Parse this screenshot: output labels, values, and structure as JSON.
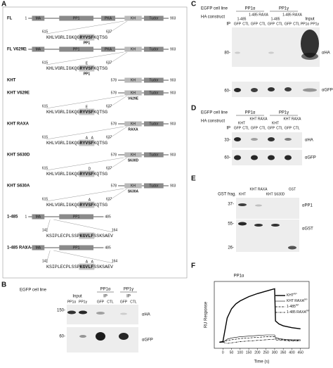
{
  "panels": {
    "A": {
      "label": "A",
      "constructs": [
        {
          "name": "FL",
          "start": "1",
          "end": "903",
          "domains": [
            "MA",
            "PP1",
            "PKA",
            "KH",
            "Tudor"
          ],
          "seq_start": "615",
          "seq_end": "637",
          "seq": [
            "KHLVGRLIGKQG",
            "RYVSF",
            "KQTSG"
          ],
          "seq_tag": "PP1"
        },
        {
          "name": "FL V629E",
          "start": "1",
          "end": "903",
          "domains": [
            "MA",
            "PP1",
            "PKA",
            "KH",
            "Tudor"
          ],
          "seq_start": "615",
          "seq_end": "637",
          "seq": [
            "KHLVGRLIGKQG",
            "RYVSF",
            "KQTSG"
          ],
          "above": [
            "E"
          ],
          "seq_tag": "PP1"
        },
        {
          "name": "KHT",
          "start": "578",
          "end": "903",
          "domains": [
            "KH",
            "Tudor"
          ]
        },
        {
          "name": "KHT V629E",
          "start": "578",
          "end": "903",
          "domains": [
            "KH",
            "Tudor"
          ],
          "sub": "V629E",
          "seq_start": "615",
          "seq_end": "637",
          "seq": [
            "KHLVGRLIGKQG",
            "RYVSF",
            "KQTSG"
          ],
          "above": [
            "E"
          ]
        },
        {
          "name": "KHT RAXA",
          "start": "578",
          "end": "903",
          "domains": [
            "KH",
            "Tudor"
          ],
          "sub": "RAXA",
          "seq_start": "615",
          "seq_end": "637",
          "seq": [
            "KHLVGRLIGKQG",
            "RYVSF",
            "KQTSG"
          ],
          "above": [
            "A",
            "A"
          ]
        },
        {
          "name": "KHT S630D",
          "start": "578",
          "end": "903",
          "domains": [
            "KH",
            "Tudor"
          ],
          "sub": "S630D",
          "seq_start": "615",
          "seq_end": "637",
          "seq": [
            "KHLVGRLIGKQG",
            "RYVSF",
            "KQTSG"
          ],
          "above": [
            "D"
          ]
        },
        {
          "name": "KHT S630A",
          "start": "578",
          "end": "903",
          "domains": [
            "KH",
            "Tudor"
          ],
          "sub": "S630A",
          "seq_start": "615",
          "seq_end": "637",
          "seq": [
            "KHLVGRLIGKQG",
            "RYVSF",
            "KQTSG"
          ],
          "above": [
            "A"
          ]
        },
        {
          "name": "1-485",
          "start": "1",
          "end": "485",
          "domains": [
            "MA",
            "PP1"
          ],
          "seq_start": "141",
          "seq_end": "164",
          "seq": [
            "KSIPLECPLSSP",
            "KGVLF",
            "SSKSAEV"
          ]
        },
        {
          "name": "1-485 RAXA",
          "start": "1",
          "end": "485",
          "domains": [
            "MA",
            "PP1"
          ],
          "seq_start": "141",
          "seq_end": "164",
          "seq": [
            "KSIPLECPLSSP",
            "KGVLF",
            "SSKSAEV"
          ],
          "above": [
            "A",
            "A"
          ]
        }
      ]
    },
    "B": {
      "label": "B",
      "cell_line_label": "EGFP cell line",
      "groups": [
        "PP1α",
        "PP1γ"
      ],
      "section_labels": [
        "Input",
        "IP",
        "IP"
      ],
      "lanes": [
        "PP1α",
        "PP1γ",
        "GFP",
        "CTL",
        "GFP",
        "CTL"
      ],
      "markers": [
        "150-",
        "60-"
      ],
      "blots": [
        "αHA",
        "αGFP"
      ]
    },
    "C": {
      "label": "C",
      "cell_line_label": "EGFP cell line",
      "groups": [
        "PP1α",
        "PP1γ"
      ],
      "construct_label": "HA construct",
      "constructs": [
        "1-485",
        "1-485 RAXA",
        "1-485",
        "1-485 RAXA"
      ],
      "ip_label": "IP",
      "lanes": [
        "GFP",
        "CTL",
        "GFP",
        "CTL",
        "GFP",
        "CTL",
        "GFP",
        "CTL"
      ],
      "input_label": "Input",
      "input_lanes": [
        "PP1α",
        "PP1γ"
      ],
      "markers": [
        "80-",
        "60-"
      ],
      "blots": [
        "αHA",
        "αGFP"
      ]
    },
    "D": {
      "label": "D",
      "cell_line_label": "EGFP cell line",
      "groups": [
        "PP1α",
        "PP1γ"
      ],
      "construct_label": "HA construct",
      "constructs": [
        "KHT",
        "KHT RAXA",
        "KHT",
        "KHT RAXA"
      ],
      "ip_label": "IP",
      "lanes": [
        "GFP",
        "CTL",
        "GFP",
        "CTL",
        "GFP",
        "CTL",
        "GFP",
        "CTL"
      ],
      "markers": [
        "33-",
        "60-"
      ],
      "blots": [
        "αHA",
        "αGFP"
      ]
    },
    "E": {
      "label": "E",
      "gst_label": "GST frag.",
      "lanes": [
        "KHT",
        "KHT RAXA",
        "KHT S630D",
        "GST"
      ],
      "markers": [
        "37-",
        "55-",
        "26-"
      ],
      "blots": [
        "αPP1",
        "αGST"
      ]
    }
  },
  "chart_data": {
    "type": "line",
    "panel_label": "F",
    "title": "PP1α",
    "x_label": "Time (s)",
    "y_label": "RU Response",
    "x": [
      -20,
      0,
      25,
      50,
      75,
      100,
      150,
      200,
      250,
      300,
      305,
      325,
      350,
      400,
      450
    ],
    "xlim": [
      -50,
      500
    ],
    "xticks": [
      0,
      50,
      100,
      150,
      200,
      250,
      300,
      350,
      400,
      450
    ],
    "ylim": [
      -10,
      100
    ],
    "series": [
      {
        "name": "KHT",
        "name_sup": "PP",
        "color": "#000000",
        "line_style": "solid",
        "width": 1.4,
        "values": [
          0,
          1,
          40,
          55,
          63,
          68,
          75,
          80,
          84,
          88,
          35,
          30,
          27,
          24,
          22
        ]
      },
      {
        "name": "KHT RAXA",
        "name_sup": "PP",
        "color": "#000000",
        "line_style": "solid",
        "width": 0.6,
        "values": [
          0,
          0,
          5,
          7,
          8,
          9,
          10,
          11,
          12,
          12,
          8,
          6,
          5,
          4,
          4
        ]
      },
      {
        "name": "1-485",
        "name_sup": "PP",
        "color": "#000000",
        "line_style": "dashed",
        "width": 0.7,
        "values": [
          0,
          0,
          3,
          4,
          5,
          6,
          7,
          8,
          9,
          9,
          6,
          5,
          4,
          3,
          3
        ]
      },
      {
        "name": "1-485 RAXA",
        "name_sup": "PP",
        "color": "#000000",
        "line_style": "dashdot",
        "width": 0.7,
        "values": [
          0,
          0,
          -2,
          -1,
          0,
          1,
          2,
          3,
          4,
          5,
          4,
          3,
          3,
          2,
          2
        ]
      }
    ]
  }
}
